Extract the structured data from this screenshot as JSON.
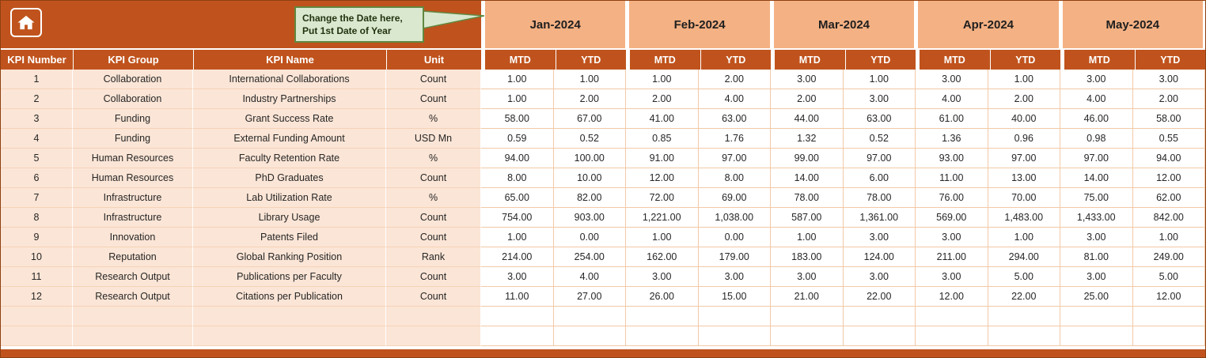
{
  "callout": {
    "line1": "Change the Date here,",
    "line2": "Put 1st Date of Year"
  },
  "months": [
    "Jan-2024",
    "Feb-2024",
    "Mar-2024",
    "Apr-2024",
    "May-2024"
  ],
  "columns": {
    "kpi_number": "KPI Number",
    "kpi_group": "KPI Group",
    "kpi_name": "KPI Name",
    "unit": "Unit",
    "mtd": "MTD",
    "ytd": "YTD"
  },
  "rows": [
    {
      "number": "1",
      "group": "Collaboration",
      "name": "International Collaborations",
      "unit": "Count",
      "values": [
        "1.00",
        "1.00",
        "1.00",
        "2.00",
        "3.00",
        "1.00",
        "3.00",
        "1.00",
        "3.00",
        "3.00"
      ]
    },
    {
      "number": "2",
      "group": "Collaboration",
      "name": "Industry Partnerships",
      "unit": "Count",
      "values": [
        "1.00",
        "2.00",
        "2.00",
        "4.00",
        "2.00",
        "3.00",
        "4.00",
        "2.00",
        "4.00",
        "2.00"
      ]
    },
    {
      "number": "3",
      "group": "Funding",
      "name": "Grant Success Rate",
      "unit": "%",
      "values": [
        "58.00",
        "67.00",
        "41.00",
        "63.00",
        "44.00",
        "63.00",
        "61.00",
        "40.00",
        "46.00",
        "58.00"
      ]
    },
    {
      "number": "4",
      "group": "Funding",
      "name": "External Funding Amount",
      "unit": "USD Mn",
      "values": [
        "0.59",
        "0.52",
        "0.85",
        "1.76",
        "1.32",
        "0.52",
        "1.36",
        "0.96",
        "0.98",
        "0.55"
      ]
    },
    {
      "number": "5",
      "group": "Human Resources",
      "name": "Faculty Retention Rate",
      "unit": "%",
      "values": [
        "94.00",
        "100.00",
        "91.00",
        "97.00",
        "99.00",
        "97.00",
        "93.00",
        "97.00",
        "97.00",
        "94.00"
      ]
    },
    {
      "number": "6",
      "group": "Human Resources",
      "name": "PhD Graduates",
      "unit": "Count",
      "values": [
        "8.00",
        "10.00",
        "12.00",
        "8.00",
        "14.00",
        "6.00",
        "11.00",
        "13.00",
        "14.00",
        "12.00"
      ]
    },
    {
      "number": "7",
      "group": "Infrastructure",
      "name": "Lab Utilization Rate",
      "unit": "%",
      "values": [
        "65.00",
        "82.00",
        "72.00",
        "69.00",
        "78.00",
        "78.00",
        "76.00",
        "70.00",
        "75.00",
        "62.00"
      ]
    },
    {
      "number": "8",
      "group": "Infrastructure",
      "name": "Library Usage",
      "unit": "Count",
      "values": [
        "754.00",
        "903.00",
        "1,221.00",
        "1,038.00",
        "587.00",
        "1,361.00",
        "569.00",
        "1,483.00",
        "1,433.00",
        "842.00"
      ]
    },
    {
      "number": "9",
      "group": "Innovation",
      "name": "Patents Filed",
      "unit": "Count",
      "values": [
        "1.00",
        "0.00",
        "1.00",
        "0.00",
        "1.00",
        "3.00",
        "3.00",
        "1.00",
        "3.00",
        "1.00"
      ]
    },
    {
      "number": "10",
      "group": "Reputation",
      "name": "Global Ranking Position",
      "unit": "Rank",
      "values": [
        "214.00",
        "254.00",
        "162.00",
        "179.00",
        "183.00",
        "124.00",
        "211.00",
        "294.00",
        "81.00",
        "249.00"
      ]
    },
    {
      "number": "11",
      "group": "Research Output",
      "name": "Publications per Faculty",
      "unit": "Count",
      "values": [
        "3.00",
        "4.00",
        "3.00",
        "3.00",
        "3.00",
        "3.00",
        "3.00",
        "5.00",
        "3.00",
        "5.00"
      ]
    },
    {
      "number": "12",
      "group": "Research Output",
      "name": "Citations per Publication",
      "unit": "Count",
      "values": [
        "11.00",
        "27.00",
        "26.00",
        "15.00",
        "21.00",
        "22.00",
        "12.00",
        "22.00",
        "25.00",
        "12.00"
      ]
    }
  ],
  "empty_rows": 2,
  "icons": {
    "home": "home-icon"
  },
  "colors": {
    "header_rust": "#C0531D",
    "month_band": "#F4B183",
    "row_tint": "#FBE5D6",
    "gridline": "#F2C9A6",
    "callout_fill": "#D9E8CF",
    "callout_border": "#61883F"
  }
}
